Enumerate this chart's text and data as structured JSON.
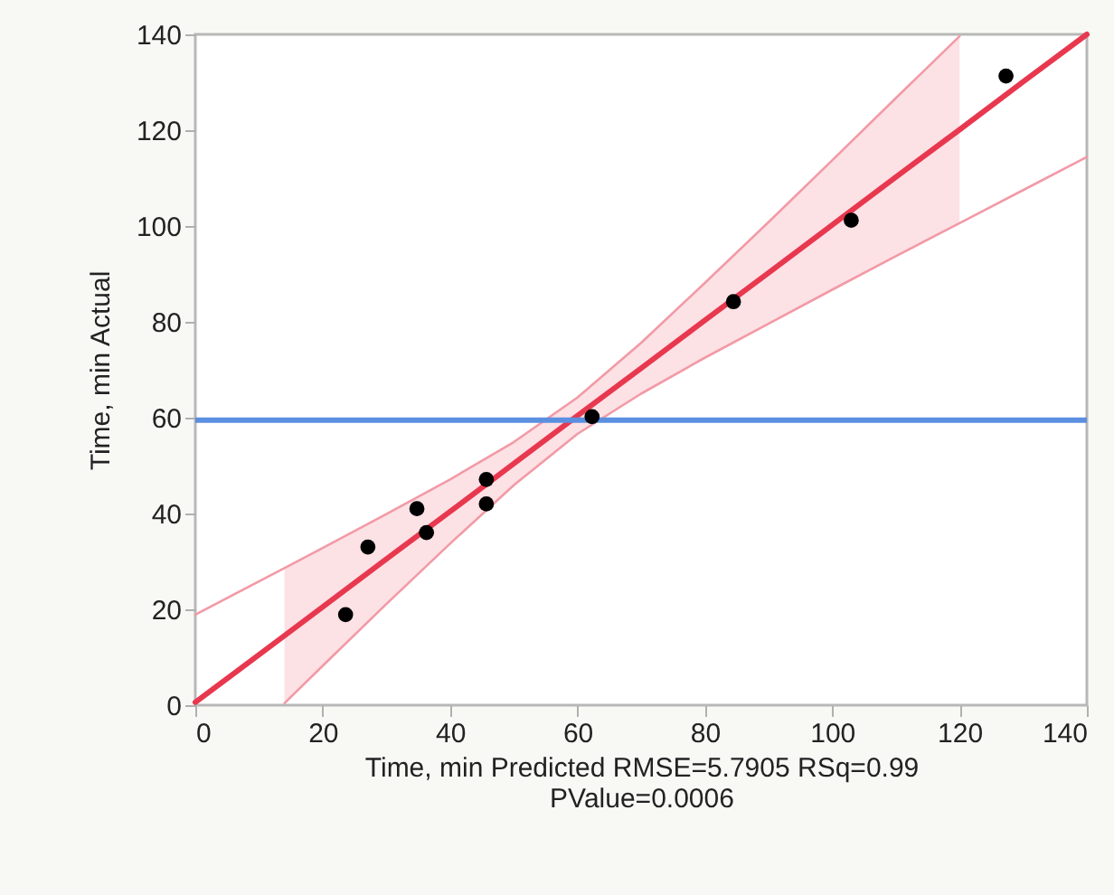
{
  "chart_data": {
    "type": "scatter",
    "xlabel": "Time, min Predicted RMSE=5.7905 RSq=0.99\nPValue=0.0006",
    "ylabel": "Time, min Actual",
    "xlim": [
      0,
      140
    ],
    "ylim": [
      0,
      140
    ],
    "xticks": [
      0,
      20,
      40,
      60,
      80,
      100,
      120,
      140
    ],
    "yticks": [
      0,
      20,
      40,
      60,
      80,
      100,
      120,
      140
    ],
    "grid": false,
    "series": [
      {
        "type": "line",
        "color": "#e8384f",
        "line_style": "solid",
        "marker": "none",
        "x": [
          0,
          14,
          20,
          30,
          40,
          50,
          60,
          70,
          80,
          90,
          100,
          110,
          120,
          130,
          140
        ],
        "values": [
          0.6,
          14.5,
          20.5,
          30.5,
          40.4,
          50.4,
          60.4,
          70.3,
          80.3,
          90.2,
          100.2,
          110.2,
          120.1,
          130.1,
          140
        ],
        "lower": [
          null,
          0.4,
          8.2,
          21.1,
          33.7,
          45.9,
          56.6,
          65.0,
          72.5,
          79.6,
          86.7,
          93.7,
          100.6,
          null,
          null
        ],
        "upper": [
          null,
          28.6,
          32.8,
          39.9,
          47.1,
          54.9,
          64.2,
          75.6,
          88.1,
          100.8,
          113.7,
          126.7,
          139.6,
          null,
          null
        ]
      },
      {
        "type": "line",
        "color": "#f29aa6",
        "line_style": "solid",
        "marker": "none",
        "x": [
          0,
          14,
          20,
          30,
          40,
          50,
          60,
          70,
          80,
          90,
          100,
          110,
          120
        ],
        "values": [
          18.9,
          28.6,
          32.8,
          39.9,
          47.1,
          54.9,
          64.2,
          75.6,
          88.1,
          100.8,
          113.7,
          126.7,
          139.6
        ]
      },
      {
        "type": "line",
        "color": "#f29aa6",
        "line_style": "solid",
        "marker": "none",
        "x": [
          14,
          20,
          30,
          40,
          50,
          60,
          70,
          80,
          90,
          100,
          110,
          120,
          130,
          140
        ],
        "values": [
          0.4,
          8.2,
          21.1,
          33.7,
          45.9,
          56.6,
          65.0,
          72.5,
          79.6,
          86.7,
          93.7,
          100.6,
          107.5,
          114.4
        ]
      },
      {
        "type": "scatter",
        "color": "#000000",
        "marker": "circle",
        "x": [
          23.6,
          27.1,
          34.8,
          36.3,
          45.7,
          45.7,
          62.3,
          84.5,
          103.0,
          127.3
        ],
        "values": [
          18.9,
          33.0,
          41.0,
          36.0,
          47.1,
          42.0,
          60.2,
          84.2,
          101.2,
          131.3
        ]
      }
    ],
    "ref_lines": [
      {
        "axis": "y",
        "value": 59.5,
        "color": "#5b8fe0",
        "line_style": "solid"
      }
    ]
  }
}
